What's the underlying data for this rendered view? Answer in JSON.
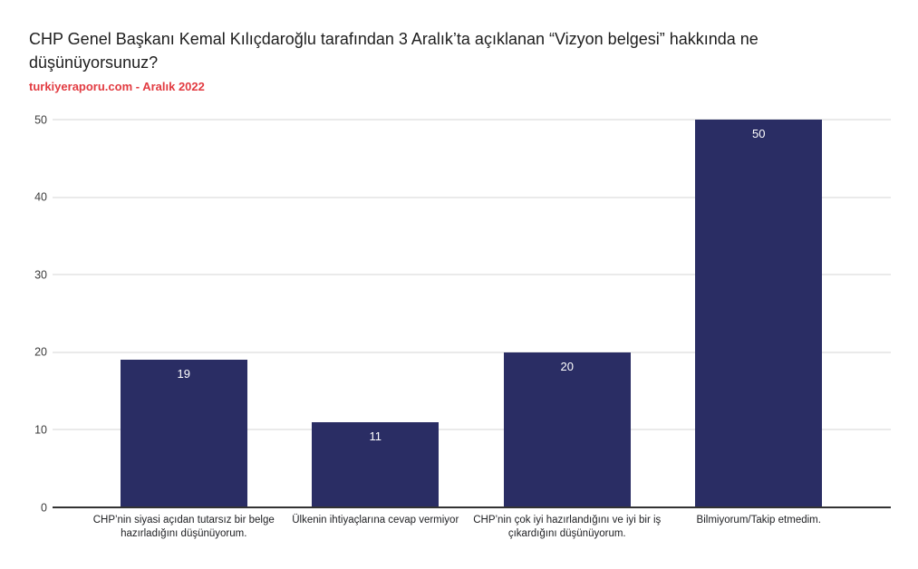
{
  "header": {
    "title": "CHP Genel Başkanı Kemal Kılıçdaroğlu tarafından 3 Aralık’ta açıklanan “Vizyon belgesi” hakkında ne düşünüyorsunuz?",
    "source": "turkiyeraporu.com - Aralık 2022"
  },
  "colors": {
    "bar": "#2a2d64",
    "source_text": "#e23b41",
    "gridline": "#d5d5d5",
    "axis_line": "#333333",
    "value_label": "#ffffff",
    "title_text": "#1e1e1e",
    "tick_text": "#3c3c3c",
    "category_text": "#202124"
  },
  "chart_data": {
    "type": "bar",
    "title": "CHP Genel Başkanı Kemal Kılıçdaroğlu tarafından 3 Aralık’ta açıklanan “Vizyon belgesi” hakkında ne düşünüyorsunuz?",
    "subtitle": "turkiyeraporu.com - Aralık 2022",
    "categories": [
      "CHP’nin siyasi açıdan tutarsız bir belge hazırladığını düşünüyorum.",
      "Ülkenin ihtiyaçlarına cevap vermiyor",
      "CHP’nin çok iyi hazırlandığını ve iyi bir iş çıkardığını düşünüyorum.",
      "Bilmiyorum/Takip etmedim."
    ],
    "values": [
      19,
      11,
      20,
      50
    ],
    "value_labels": [
      "19",
      "11",
      "20",
      "50"
    ],
    "xlabel": "",
    "ylabel": "",
    "ylim": [
      0,
      50
    ],
    "y_ticks": [
      0,
      10,
      20,
      30,
      40,
      50
    ],
    "grid": true,
    "legend": "none",
    "value_labels_position": "inside-top"
  }
}
